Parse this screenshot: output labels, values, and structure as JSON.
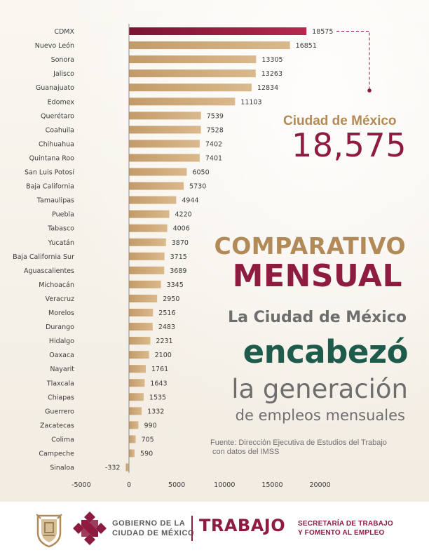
{
  "chart_data": {
    "type": "bar",
    "orientation": "horizontal",
    "categories": [
      "CDMX",
      "Nuevo León",
      "Sonora",
      "Jalisco",
      "Guanajuato",
      "Edomex",
      "Querétaro",
      "Coahuila",
      "Chihuahua",
      "Quintana Roo",
      "San Luis Potosí",
      "Baja California",
      "Tamaulipas",
      "Puebla",
      "Tabasco",
      "Yucatán",
      "Baja California Sur",
      "Aguascalientes",
      "Michoacán",
      "Veracruz",
      "Morelos",
      "Durango",
      "Hidalgo",
      "Oaxaca",
      "Nayarit",
      "Tlaxcala",
      "Chiapas",
      "Guerrero",
      "Zacatecas",
      "Colima",
      "Campeche",
      "Sinaloa"
    ],
    "values": [
      18575,
      16851,
      13305,
      13263,
      12834,
      11103,
      7539,
      7528,
      7402,
      7401,
      6050,
      5730,
      4944,
      4220,
      4006,
      3870,
      3715,
      3689,
      3345,
      2950,
      2516,
      2483,
      2231,
      2100,
      1761,
      1643,
      1535,
      1332,
      990,
      705,
      590,
      -332
    ],
    "value_labels": [
      "18575",
      "16851",
      "13305",
      "13263",
      "12834",
      "11103",
      "7539",
      "7528",
      "7402",
      "7401",
      "6050",
      "5730",
      "4944",
      "4220",
      "4006",
      "3870",
      "3715",
      "3689",
      "3345",
      "2950",
      "2516",
      "2483",
      "2231",
      "2100",
      "1761",
      "1643",
      "1535",
      "1332",
      "990",
      "705",
      "590",
      "-332"
    ],
    "xlim": [
      -5000,
      20000
    ],
    "xticks": [
      -5000,
      0,
      5000,
      10000,
      15000,
      20000
    ],
    "xtick_labels": [
      "-5000",
      "0",
      "5000",
      "10000",
      "15000",
      "20000"
    ],
    "highlight_index": 0,
    "colors": {
      "highlight_start": "#7a1331",
      "highlight_end": "#b5294f",
      "bar_start": "#c29b6a",
      "bar_end": "#d9b98d",
      "axis": "#8a8a8a"
    }
  },
  "highlight": {
    "title": "Ciudad de México",
    "value": "18,575"
  },
  "headline": {
    "line1": "COMPARATIVO",
    "line2": "MENSUAL",
    "line3": "La Ciudad de México",
    "line4": "encabezó",
    "line5": "la generación",
    "line6": "de empleos mensuales"
  },
  "source": {
    "line1": "Fuente: Dirección Ejecutiva de Estudios del Trabajo",
    "line2": "con datos del IMSS"
  },
  "footer": {
    "gob_line1": "GOBIERNO DE LA",
    "gob_line2": "CIUDAD DE MÉXICO",
    "trabajo": "TRABAJO",
    "sec_line1": "SECRETARÍA DE TRABAJO",
    "sec_line2": "Y FOMENTO AL EMPLEO",
    "icons": [
      "coat-of-arms-icon",
      "cdmx-logo-icon"
    ]
  },
  "colors": {
    "brand": "#8e1b40",
    "gold": "#b28a58",
    "green": "#1e5b4a",
    "grey": "#6e6e6e"
  }
}
